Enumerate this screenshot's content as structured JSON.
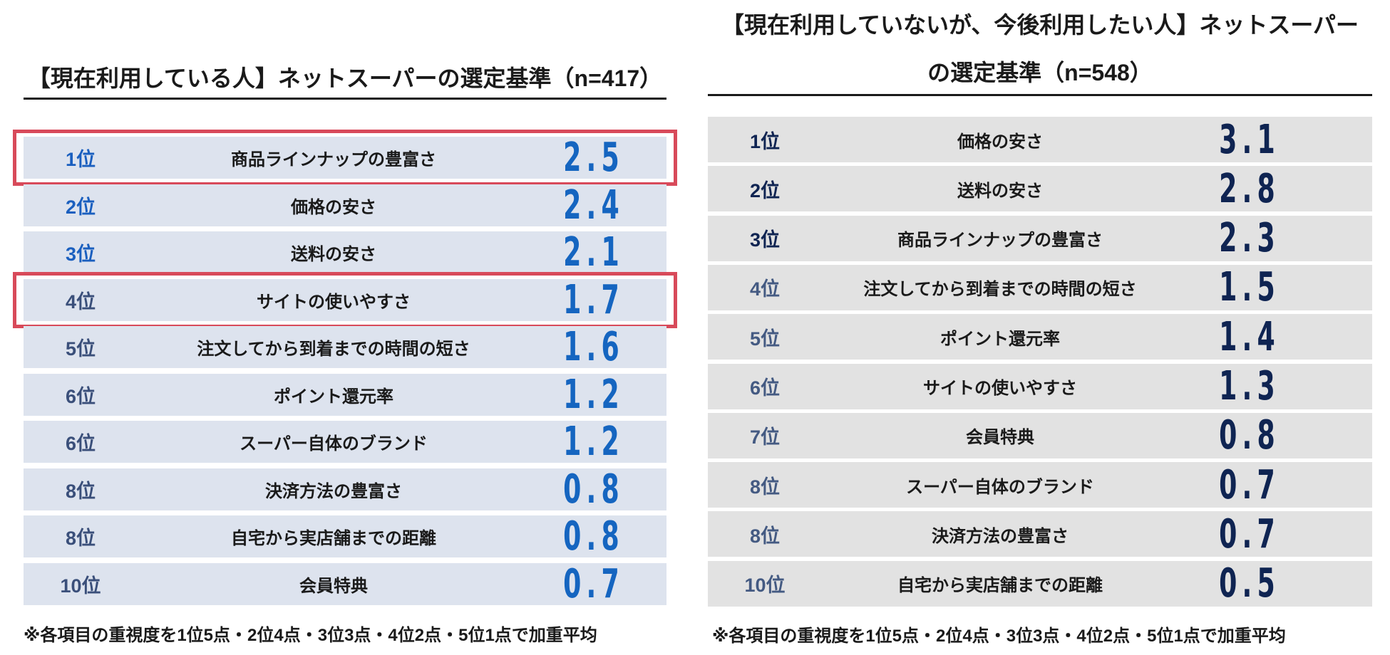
{
  "chart_data": [
    {
      "type": "table",
      "title": "【現在利用している人】ネットスーパーの選定基準（n=417）",
      "columns": [
        "rank",
        "item",
        "score"
      ],
      "rows": [
        {
          "rank": "1位",
          "item": "商品ラインナップの豊富さ",
          "score": "2.5",
          "highlighted": true
        },
        {
          "rank": "2位",
          "item": "価格の安さ",
          "score": "2.4",
          "highlighted": false
        },
        {
          "rank": "3位",
          "item": "送料の安さ",
          "score": "2.1",
          "highlighted": false
        },
        {
          "rank": "4位",
          "item": "サイトの使いやすさ",
          "score": "1.7",
          "highlighted": true
        },
        {
          "rank": "5位",
          "item": "注文してから到着までの時間の短さ",
          "score": "1.6",
          "highlighted": false
        },
        {
          "rank": "6位",
          "item": "ポイント還元率",
          "score": "1.2",
          "highlighted": false
        },
        {
          "rank": "6位",
          "item": "スーパー自体のブランド",
          "score": "1.2",
          "highlighted": false
        },
        {
          "rank": "8位",
          "item": "決済方法の豊富さ",
          "score": "0.8",
          "highlighted": false
        },
        {
          "rank": "8位",
          "item": "自宅から実店舗までの距離",
          "score": "0.8",
          "highlighted": false
        },
        {
          "rank": "10位",
          "item": "会員特典",
          "score": "0.7",
          "highlighted": false
        }
      ],
      "footnote": "※各項目の重視度を1位5点・2位4点・3位3点・4位2点・5位1点で加重平均"
    },
    {
      "type": "table",
      "title_lines": [
        "【現在利用していないが、今後利用したい人】ネットスーパー",
        "の選定基準（n=548）"
      ],
      "columns": [
        "rank",
        "item",
        "score"
      ],
      "rows": [
        {
          "rank": "1位",
          "item": "価格の安さ",
          "score": "3.1"
        },
        {
          "rank": "2位",
          "item": "送料の安さ",
          "score": "2.8"
        },
        {
          "rank": "3位",
          "item": "商品ラインナップの豊富さ",
          "score": "2.3"
        },
        {
          "rank": "4位",
          "item": "注文してから到着までの時間の短さ",
          "score": "1.5"
        },
        {
          "rank": "5位",
          "item": "ポイント還元率",
          "score": "1.4"
        },
        {
          "rank": "6位",
          "item": "サイトの使いやすさ",
          "score": "1.3"
        },
        {
          "rank": "7位",
          "item": "会員特典",
          "score": "0.8"
        },
        {
          "rank": "8位",
          "item": "スーパー自体のブランド",
          "score": "0.7"
        },
        {
          "rank": "8位",
          "item": "決済方法の豊富さ",
          "score": "0.7"
        },
        {
          "rank": "10位",
          "item": "自宅から実店舗までの距離",
          "score": "0.5"
        }
      ],
      "footnote": "※各項目の重視度を1位5点・2位4点・3位3点・4位2点・5位1点で加重平均"
    }
  ],
  "colors": {
    "left_row_bg": "#dde3ee",
    "left_top_rank": "#1a5fbf",
    "left_low_rank": "#3a4f7a",
    "left_score": "#1565c0",
    "right_row_bg": "#e2e2e2",
    "right_top_rank": "#0f2452",
    "right_low_rank": "#445a82",
    "right_score": "#0f2452",
    "highlight": "#d84a5a"
  }
}
